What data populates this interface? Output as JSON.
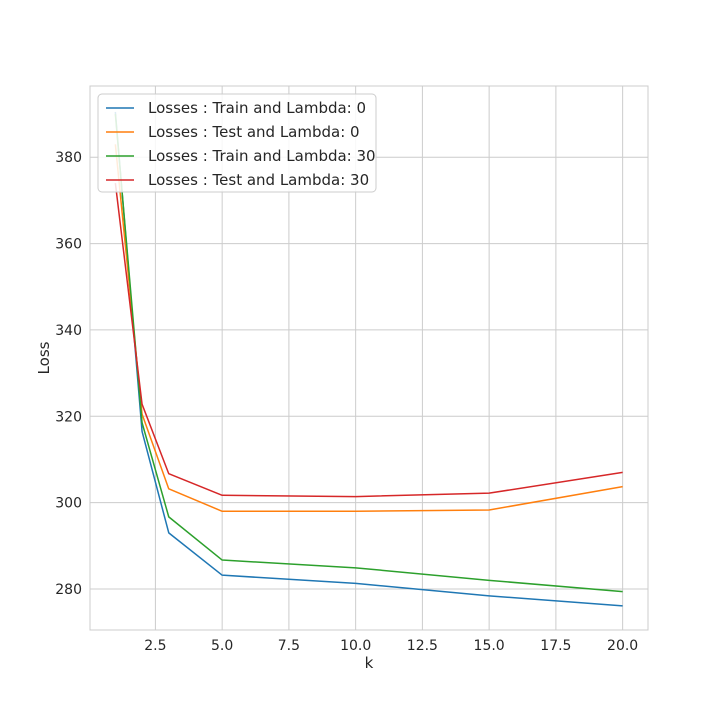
{
  "chart_data": {
    "type": "line",
    "title": "",
    "xlabel": "k",
    "ylabel": "Loss",
    "xlim": [
      0.05,
      20.95
    ],
    "ylim": [
      270.5,
      396.5
    ],
    "grid": true,
    "legend_position": "top-left",
    "x": [
      1,
      2,
      3,
      5,
      10,
      15,
      20
    ],
    "x_ticks": [
      2.5,
      5.0,
      7.5,
      10.0,
      12.5,
      15.0,
      17.5,
      20.0
    ],
    "x_tick_labels": [
      "2.5",
      "5.0",
      "7.5",
      "10.0",
      "12.5",
      "15.0",
      "17.5",
      "20.0"
    ],
    "y_ticks": [
      280,
      300,
      320,
      340,
      360,
      380
    ],
    "y_tick_labels": [
      "280",
      "300",
      "320",
      "340",
      "360",
      "380"
    ],
    "series": [
      {
        "name": "Losses : Train and Lambda: 0",
        "color": "#1f77b4",
        "values": [
          390.5,
          316.5,
          293.0,
          283.2,
          281.3,
          278.4,
          276.1
        ]
      },
      {
        "name": "Losses : Test and Lambda: 0",
        "color": "#ff7f0e",
        "values": [
          383.0,
          320.5,
          303.2,
          298.0,
          298.0,
          298.3,
          303.7
        ]
      },
      {
        "name": "Losses : Train and Lambda: 30",
        "color": "#2ca02c",
        "values": [
          390.0,
          318.5,
          296.7,
          286.7,
          284.9,
          282.0,
          279.4
        ]
      },
      {
        "name": "Losses : Test and Lambda: 30",
        "color": "#d62728",
        "values": [
          374.0,
          322.8,
          306.7,
          301.7,
          301.4,
          302.2,
          307.0
        ]
      }
    ]
  }
}
